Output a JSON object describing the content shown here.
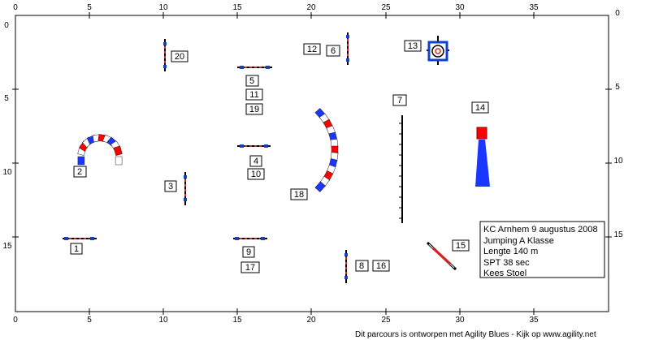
{
  "grid": {
    "x_ticks": [
      "0",
      "5",
      "10",
      "15",
      "20",
      "25",
      "30",
      "35"
    ],
    "y_ticks_left": [
      "0",
      "5",
      "10",
      "15"
    ],
    "y_ticks_right": [
      "0",
      "5",
      "10",
      "15"
    ],
    "x_ticks_bottom": [
      "0",
      "5",
      "10",
      "15",
      "20",
      "25",
      "30",
      "35"
    ]
  },
  "labels": [
    "20",
    "12",
    "6",
    "13",
    "5",
    "11",
    "19",
    "7",
    "14",
    "4",
    "10",
    "2",
    "3",
    "18",
    "1",
    "9",
    "17",
    "8",
    "16",
    "15"
  ],
  "info_box": {
    "line1": "KC Arnhem 9 augustus 2008",
    "line2": "Jumping A Klasse",
    "line3": "Lengte 140 m",
    "line4": "SPT 38 sec",
    "line5": "Kees Stoel"
  },
  "credit": "Dit parcours is ontworpen met Agility Blues - Kijk op www.agility.net",
  "colors": {
    "bar_red": "#e02020",
    "bar_blue": "#1040d0",
    "tunnel_red": "#ff0000",
    "tunnel_blue": "#1a36ff",
    "grid": "#000000"
  }
}
